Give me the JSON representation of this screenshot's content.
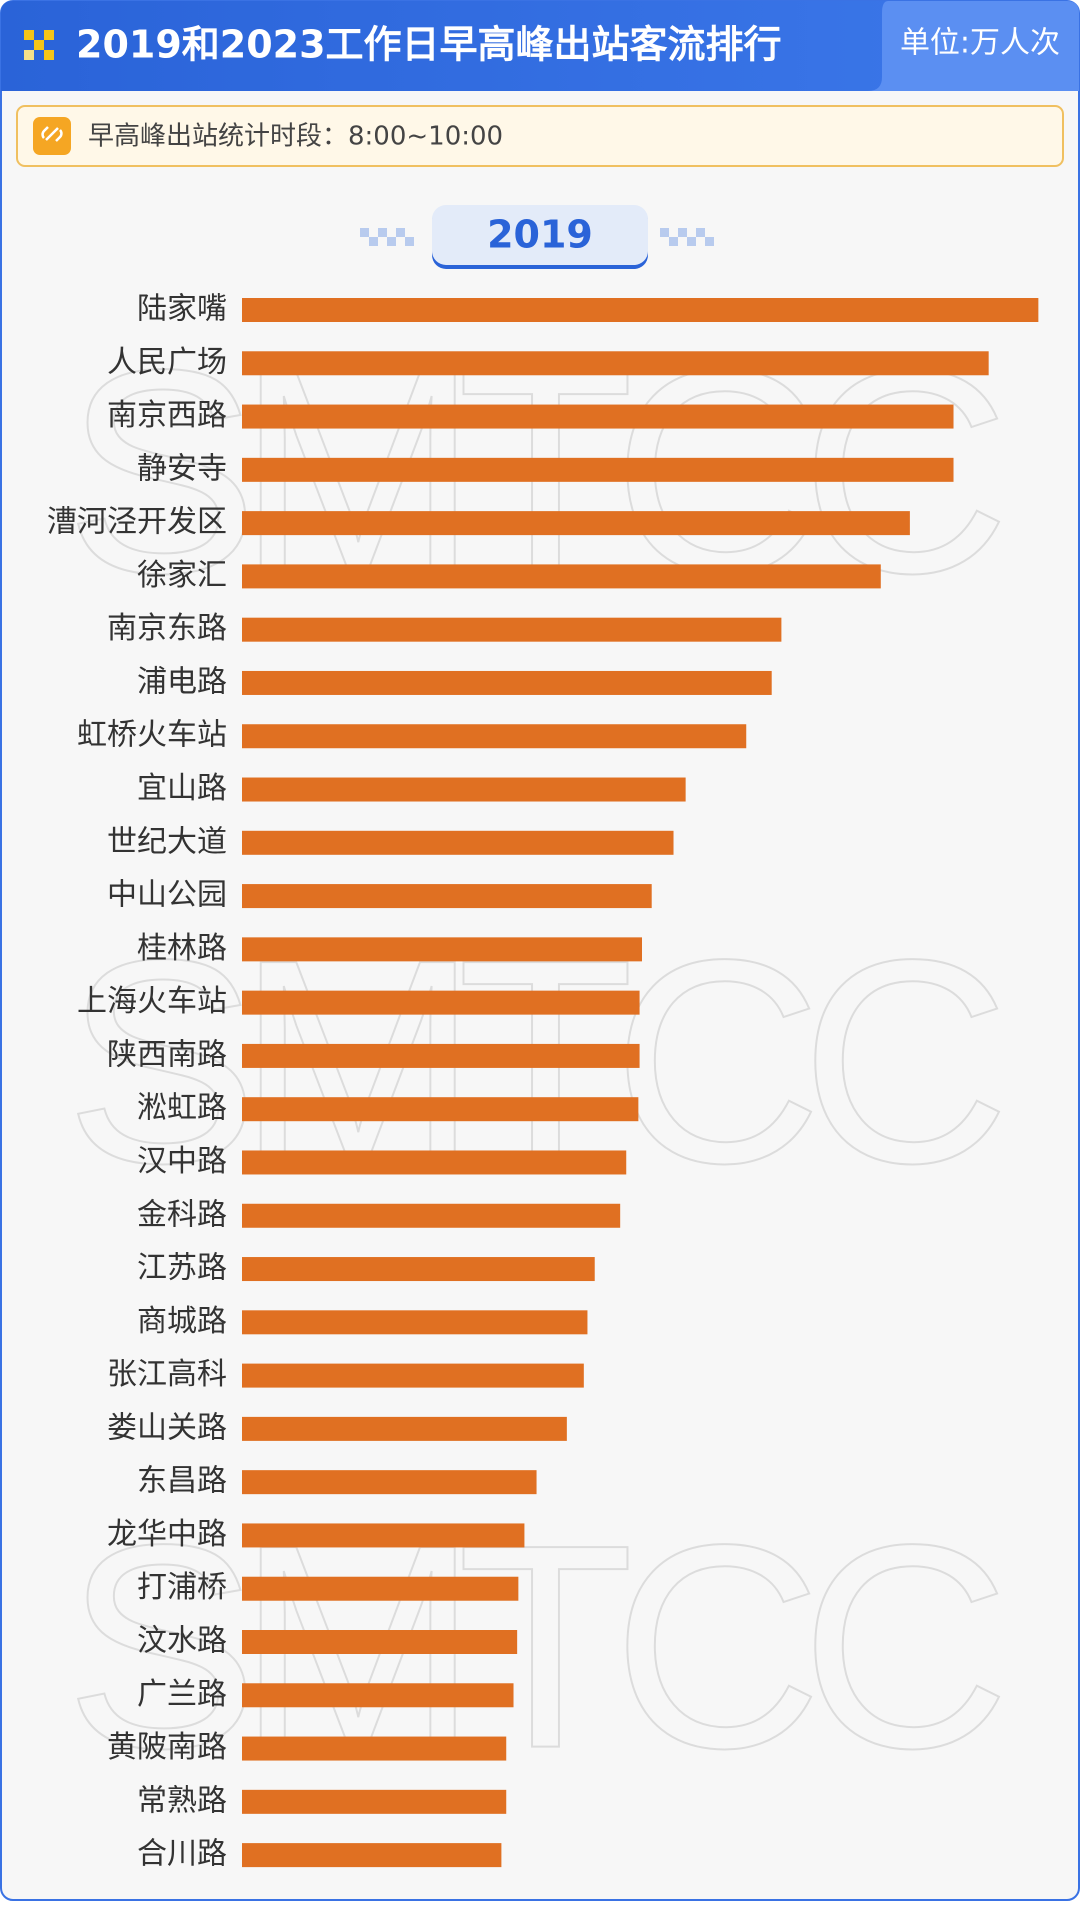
{
  "header": {
    "title": "2019和2023工作日早高峰出站客流排行",
    "unit": "单位:万人次"
  },
  "note": "早高峰出站统计时段：8:00~10:00",
  "watermark": "SMTCC",
  "chart_data": {
    "type": "bar",
    "subtitle": "2019",
    "categories": [
      "陆家嘴",
      "人民广场",
      "南京西路",
      "静安寺",
      "漕河泾开发区",
      "徐家汇",
      "南京东路",
      "浦电路",
      "虹桥火车站",
      "宜山路",
      "世纪大道",
      "中山公园",
      "桂林路",
      "上海火车站",
      "陕西南路",
      "淞虹路",
      "汉中路",
      "金科路",
      "江苏路",
      "商城路",
      "张江高科",
      "娄山关路",
      "东昌路",
      "龙华中路",
      "打浦桥",
      "汶水路",
      "广兰路",
      "黄陂南路",
      "常熟路",
      "合川路"
    ],
    "values": [
      65.7,
      61.6,
      58.7,
      58.7,
      55.1,
      52.7,
      44.5,
      43.7,
      41.6,
      36.6,
      35.6,
      33.8,
      33.0,
      32.8,
      32.8,
      32.7,
      31.7,
      31.2,
      29.1,
      28.5,
      28.2,
      26.8,
      24.3,
      23.3,
      22.8,
      22.7,
      22.4,
      21.8,
      21.8,
      21.4
    ],
    "color": "#e07022",
    "xlim": [
      0,
      66
    ]
  }
}
